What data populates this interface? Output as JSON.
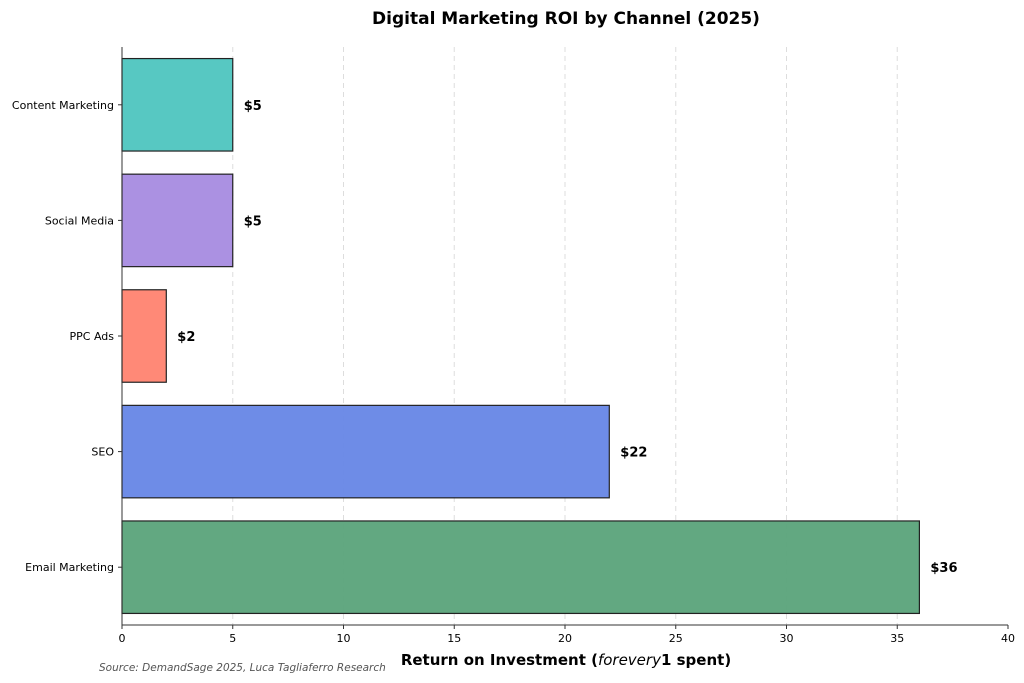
{
  "chart_data": {
    "type": "bar",
    "orientation": "horizontal",
    "title": "Digital Marketing ROI by Channel (2025)",
    "xlabel_parts": [
      "Return on Investment (",
      "forevery",
      "1 spent)"
    ],
    "ylabel": "",
    "categories": [
      "Email Marketing",
      "SEO",
      "PPC Ads",
      "Social Media",
      "Content Marketing"
    ],
    "values": [
      36,
      22,
      2,
      5,
      5
    ],
    "value_labels": [
      "$36",
      "$22",
      "$2",
      "$5",
      "$5"
    ],
    "colors": [
      "#5aa37a",
      "#6686e6",
      "#ff8370",
      "#a78be0",
      "#4ec5bf"
    ],
    "xlim": [
      0,
      40
    ],
    "xticks": [
      0,
      5,
      10,
      15,
      20,
      25,
      30,
      35,
      40
    ],
    "grid": "x-dashed",
    "source": "Source: DemandSage 2025, Luca Tagliaferro Research"
  }
}
